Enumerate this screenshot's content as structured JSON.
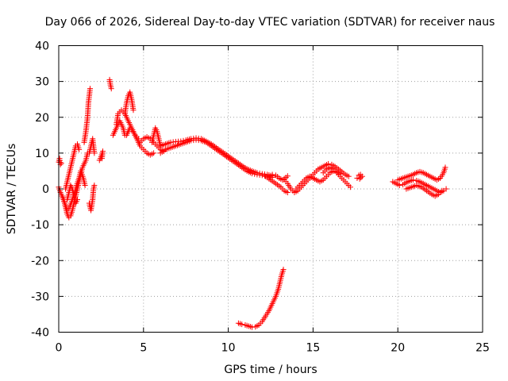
{
  "chart_data": {
    "type": "scatter",
    "title": "Day 066 of 2026, Sidereal Day-to-day VTEC variation (SDTVAR) for receiver naus",
    "xlabel": "GPS time / hours",
    "ylabel": "SDTVAR / TECUs",
    "xlim": [
      0,
      25
    ],
    "ylim": [
      -40,
      40
    ],
    "xticks": [
      "0",
      "5",
      "10",
      "15",
      "20",
      "25"
    ],
    "yticks": [
      "-40",
      "-30",
      "-20",
      "-10",
      "0",
      "10",
      "20",
      "30",
      "40"
    ],
    "grid": true,
    "marker": "plus",
    "color": "#ff0000",
    "series": [
      {
        "name": "SDTVAR",
        "segments": [
          [
            [
              0.0,
              7.5
            ],
            [
              0.05,
              8.5
            ],
            [
              0.1,
              6.8
            ],
            [
              0.15,
              7.2
            ]
          ],
          [
            [
              0.0,
              0.5
            ],
            [
              0.1,
              -1
            ],
            [
              0.2,
              -2
            ],
            [
              0.3,
              -3
            ],
            [
              0.4,
              -5
            ],
            [
              0.5,
              -7
            ],
            [
              0.6,
              -8
            ],
            [
              0.7,
              -7.5
            ],
            [
              0.8,
              -6
            ],
            [
              0.9,
              -4
            ],
            [
              1.0,
              -2
            ],
            [
              1.1,
              0
            ],
            [
              1.2,
              2
            ],
            [
              1.3,
              4
            ],
            [
              1.4,
              6
            ],
            [
              1.5,
              7
            ],
            [
              1.6,
              8
            ],
            [
              1.7,
              10
            ]
          ],
          [
            [
              0.2,
              -2
            ],
            [
              0.35,
              -4
            ],
            [
              0.5,
              -6
            ],
            [
              0.65,
              -5
            ],
            [
              0.8,
              -3
            ],
            [
              0.95,
              -1
            ],
            [
              1.05,
              1
            ],
            [
              1.2,
              3
            ],
            [
              1.3,
              5
            ],
            [
              1.45,
              3
            ],
            [
              1.55,
              1
            ]
          ],
          [
            [
              0.4,
              0
            ],
            [
              0.5,
              2
            ],
            [
              0.6,
              4
            ],
            [
              0.7,
              6
            ],
            [
              0.8,
              8
            ],
            [
              0.9,
              10
            ],
            [
              1.0,
              12
            ],
            [
              1.1,
              12.5
            ],
            [
              1.2,
              11
            ]
          ],
          [
            [
              0.5,
              -3
            ],
            [
              0.6,
              -1
            ],
            [
              0.7,
              1
            ],
            [
              0.8,
              0
            ],
            [
              0.9,
              -2
            ],
            [
              1.0,
              -4
            ],
            [
              1.1,
              -3
            ]
          ],
          [
            [
              1.5,
              13
            ],
            [
              1.6,
              16
            ],
            [
              1.7,
              20
            ],
            [
              1.75,
              24
            ],
            [
              1.8,
              26
            ],
            [
              1.85,
              28
            ]
          ],
          [
            [
              1.8,
              10
            ],
            [
              1.9,
              12
            ],
            [
              2.0,
              14
            ],
            [
              2.05,
              12
            ],
            [
              2.1,
              10
            ]
          ],
          [
            [
              1.8,
              -4
            ],
            [
              1.9,
              -6
            ],
            [
              2.0,
              -3
            ],
            [
              2.05,
              0
            ],
            [
              2.1,
              1
            ]
          ],
          [
            [
              2.4,
              8
            ],
            [
              2.5,
              9
            ],
            [
              2.6,
              10.5
            ],
            [
              2.55,
              8.5
            ]
          ],
          [
            [
              3.0,
              30.5
            ],
            [
              3.05,
              29
            ],
            [
              3.1,
              28
            ]
          ],
          [
            [
              3.2,
              15
            ],
            [
              3.4,
              17
            ],
            [
              3.6,
              19
            ],
            [
              3.8,
              17
            ],
            [
              3.9,
              15
            ]
          ],
          [
            [
              3.4,
              18
            ],
            [
              3.5,
              21
            ],
            [
              3.7,
              22
            ],
            [
              3.9,
              21
            ],
            [
              4.1,
              19
            ],
            [
              4.3,
              17
            ],
            [
              4.5,
              15
            ],
            [
              4.7,
              14
            ]
          ],
          [
            [
              3.9,
              21
            ],
            [
              4.0,
              24
            ],
            [
              4.1,
              26
            ],
            [
              4.2,
              27
            ],
            [
              4.3,
              25
            ],
            [
              4.4,
              22
            ]
          ],
          [
            [
              4.0,
              15
            ],
            [
              4.2,
              17
            ],
            [
              4.4,
              16
            ],
            [
              4.6,
              14
            ],
            [
              4.8,
              12
            ],
            [
              5.0,
              11
            ],
            [
              5.2,
              10
            ],
            [
              5.4,
              9.5
            ],
            [
              5.6,
              10
            ]
          ],
          [
            [
              4.8,
              13
            ],
            [
              5.0,
              14
            ],
            [
              5.2,
              14.5
            ],
            [
              5.4,
              14
            ],
            [
              5.6,
              13
            ],
            [
              5.8,
              12
            ],
            [
              6.0,
              11
            ],
            [
              6.2,
              10.5
            ]
          ],
          [
            [
              5.5,
              13
            ],
            [
              5.6,
              15
            ],
            [
              5.7,
              17
            ],
            [
              5.8,
              16
            ],
            [
              5.9,
              14
            ],
            [
              6.0,
              12
            ]
          ],
          [
            [
              6.0,
              10
            ],
            [
              6.3,
              11
            ],
            [
              6.6,
              11.5
            ],
            [
              6.9,
              12
            ],
            [
              7.2,
              12.5
            ],
            [
              7.5,
              13
            ],
            [
              7.8,
              13.5
            ],
            [
              8.1,
              13.7
            ],
            [
              8.4,
              13.5
            ],
            [
              8.7,
              13
            ],
            [
              9.0,
              12
            ],
            [
              9.3,
              11
            ],
            [
              9.6,
              10
            ],
            [
              9.9,
              9
            ],
            [
              10.2,
              8
            ],
            [
              10.5,
              7
            ],
            [
              10.8,
              6
            ],
            [
              11.1,
              5
            ],
            [
              11.4,
              4.3
            ],
            [
              11.7,
              4
            ],
            [
              12.0,
              3.8
            ],
            [
              12.3,
              3.5
            ],
            [
              12.6,
              3.2
            ]
          ],
          [
            [
              6.0,
              12
            ],
            [
              6.3,
              12.5
            ],
            [
              6.6,
              13
            ],
            [
              6.9,
              13.2
            ],
            [
              7.2,
              13.3
            ],
            [
              7.5,
              13.6
            ],
            [
              7.8,
              14
            ],
            [
              8.1,
              14.2
            ],
            [
              8.4,
              14
            ],
            [
              8.7,
              13.3
            ],
            [
              9.0,
              12.5
            ],
            [
              9.3,
              11.5
            ],
            [
              9.6,
              10.5
            ],
            [
              9.9,
              9.5
            ],
            [
              10.2,
              8.5
            ],
            [
              10.5,
              7.5
            ],
            [
              10.8,
              6.5
            ],
            [
              11.1,
              5.6
            ],
            [
              11.4,
              5
            ],
            [
              11.7,
              4.5
            ],
            [
              12.0,
              4.2
            ],
            [
              12.3,
              4
            ],
            [
              12.6,
              3.6
            ]
          ],
          [
            [
              12.2,
              3.5
            ],
            [
              12.5,
              2.5
            ],
            [
              12.8,
              1.5
            ],
            [
              13.1,
              0.5
            ],
            [
              13.3,
              -0.5
            ],
            [
              13.5,
              -1
            ]
          ],
          [
            [
              12.6,
              4
            ],
            [
              12.8,
              3.8
            ],
            [
              13.0,
              3
            ],
            [
              13.2,
              2.5
            ],
            [
              13.4,
              3.2
            ],
            [
              13.5,
              3.6
            ]
          ],
          [
            [
              13.3,
              2.6
            ],
            [
              13.5,
              1.5
            ],
            [
              13.7,
              0
            ],
            [
              13.9,
              -1
            ],
            [
              14.1,
              -0.5
            ],
            [
              14.3,
              0.5
            ],
            [
              14.5,
              1.5
            ],
            [
              14.7,
              2.5
            ],
            [
              14.9,
              3.5
            ],
            [
              15.1,
              4.5
            ],
            [
              15.3,
              5.5
            ],
            [
              15.5,
              6
            ],
            [
              15.7,
              6.5
            ],
            [
              15.9,
              7
            ],
            [
              16.1,
              6.8
            ],
            [
              16.3,
              6.2
            ],
            [
              16.5,
              5.5
            ],
            [
              16.7,
              4.8
            ],
            [
              16.9,
              4
            ],
            [
              17.1,
              3.5
            ]
          ],
          [
            [
              14.0,
              0
            ],
            [
              14.2,
              1
            ],
            [
              14.4,
              2
            ],
            [
              14.6,
              3
            ],
            [
              14.8,
              3.5
            ],
            [
              15.0,
              3
            ],
            [
              15.2,
              2.5
            ],
            [
              15.4,
              2
            ],
            [
              15.6,
              2.5
            ],
            [
              15.8,
              3.5
            ],
            [
              16.0,
              4.5
            ],
            [
              16.2,
              5
            ],
            [
              16.4,
              4.8
            ],
            [
              16.6,
              4.2
            ]
          ],
          [
            [
              15.6,
              4.5
            ],
            [
              15.8,
              5.5
            ],
            [
              16.0,
              6
            ],
            [
              16.2,
              5.5
            ],
            [
              16.4,
              4.5
            ],
            [
              16.6,
              3.5
            ],
            [
              16.8,
              2.5
            ],
            [
              17.0,
              1.5
            ],
            [
              17.2,
              0.5
            ]
          ],
          [
            [
              17.6,
              3
            ],
            [
              17.7,
              3.8
            ],
            [
              17.8,
              4
            ],
            [
              17.9,
              3.5
            ],
            [
              17.75,
              2.8
            ]
          ],
          [
            [
              19.7,
              2
            ],
            [
              19.9,
              1.5
            ],
            [
              20.1,
              1
            ],
            [
              20.3,
              1.2
            ],
            [
              20.5,
              1.8
            ],
            [
              20.7,
              2.2
            ],
            [
              20.9,
              2.5
            ],
            [
              21.1,
              2.3
            ],
            [
              21.3,
              2
            ],
            [
              21.5,
              1.5
            ],
            [
              21.7,
              1
            ],
            [
              21.9,
              0.5
            ],
            [
              22.1,
              0
            ],
            [
              22.3,
              -0.5
            ],
            [
              22.5,
              -1
            ],
            [
              22.7,
              -0.5
            ],
            [
              22.85,
              0
            ]
          ],
          [
            [
              20.0,
              2.5
            ],
            [
              20.3,
              3
            ],
            [
              20.6,
              3.5
            ],
            [
              20.9,
              4
            ],
            [
              21.1,
              4.5
            ],
            [
              21.3,
              4.8
            ],
            [
              21.5,
              4.5
            ],
            [
              21.7,
              4
            ],
            [
              21.9,
              3.5
            ],
            [
              22.1,
              3
            ],
            [
              22.3,
              2.5
            ],
            [
              22.5,
              3
            ],
            [
              22.7,
              4.5
            ],
            [
              22.8,
              6
            ]
          ],
          [
            [
              20.5,
              0
            ],
            [
              20.8,
              0.5
            ],
            [
              21.1,
              1
            ],
            [
              21.4,
              0.5
            ],
            [
              21.7,
              -0.5
            ],
            [
              22.0,
              -1.5
            ],
            [
              22.2,
              -2
            ],
            [
              22.4,
              -1.5
            ],
            [
              22.6,
              -0.5
            ]
          ],
          [
            [
              10.6,
              -37.5
            ],
            [
              10.8,
              -37.8
            ],
            [
              11.0,
              -38
            ],
            [
              11.2,
              -38.3
            ],
            [
              11.4,
              -38.6
            ],
            [
              11.6,
              -38.5
            ],
            [
              11.8,
              -38
            ],
            [
              12.0,
              -37
            ],
            [
              12.2,
              -35.5
            ],
            [
              12.4,
              -34
            ],
            [
              12.6,
              -32
            ],
            [
              12.8,
              -30
            ],
            [
              12.95,
              -28
            ],
            [
              13.05,
              -26
            ],
            [
              13.15,
              -24
            ],
            [
              13.25,
              -22.5
            ]
          ]
        ]
      }
    ]
  }
}
